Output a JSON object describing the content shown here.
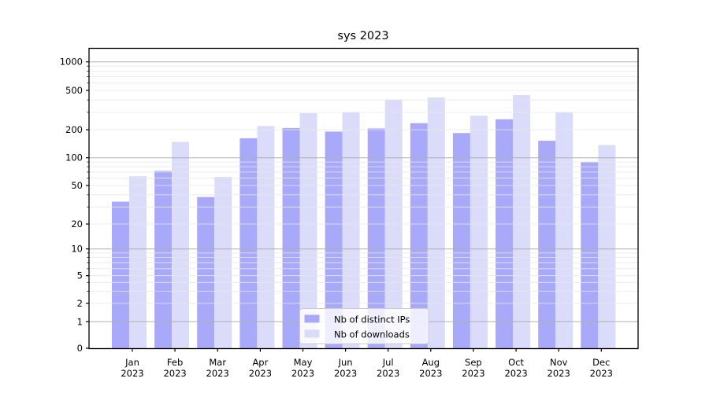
{
  "chart_data": {
    "type": "bar",
    "title": "sys 2023",
    "categories": [
      "Jan",
      "Feb",
      "Mar",
      "Apr",
      "May",
      "Jun",
      "Jul",
      "Aug",
      "Sep",
      "Oct",
      "Nov",
      "Dec"
    ],
    "x_tick_year": "2023",
    "series": [
      {
        "name": "Nb of distinct IPs",
        "color": "#a9a9fa",
        "values": [
          34,
          72,
          38,
          162,
          208,
          191,
          206,
          233,
          184,
          255,
          152,
          90
        ]
      },
      {
        "name": "Nb of downloads",
        "color": "#dbdbfa",
        "values": [
          63,
          148,
          62,
          218,
          294,
          301,
          404,
          424,
          277,
          448,
          301,
          137
        ]
      }
    ],
    "y_ticks": [
      0,
      1,
      2,
      5,
      10,
      20,
      50,
      100,
      200,
      500,
      1000
    ],
    "y_scale": "symlog",
    "ylim": [
      0,
      1400
    ],
    "grid": "major and minor horizontal gridlines",
    "legend_position": "lower center",
    "colors": {
      "major_grid": "#b0b0b0",
      "minor_grid": "#e7e7e7",
      "spine": "#000000"
    }
  }
}
